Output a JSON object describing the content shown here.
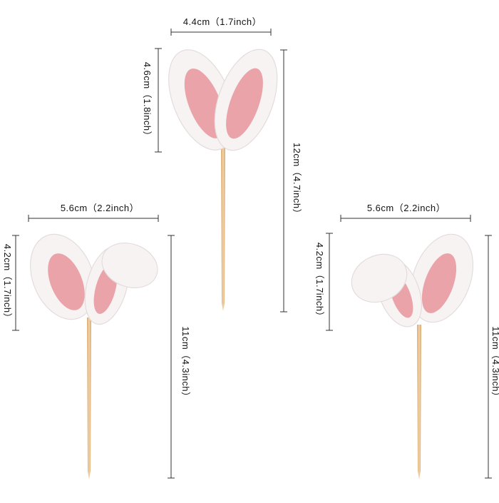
{
  "toppers": [
    {
      "width": "4.4cm（1.7inch）",
      "ear_height": "4.6cm（1.8inch）",
      "length": "12cm（4.7inch）"
    },
    {
      "width": "5.6cm（2.2inch）",
      "ear_height": "4.2cm（1.7inch）",
      "length": "11cm（4.3inch）"
    },
    {
      "width": "5.6cm（2.2inch）",
      "ear_height": "4.2cm（1.7inch）",
      "length": "11cm（4.3inch）"
    }
  ]
}
